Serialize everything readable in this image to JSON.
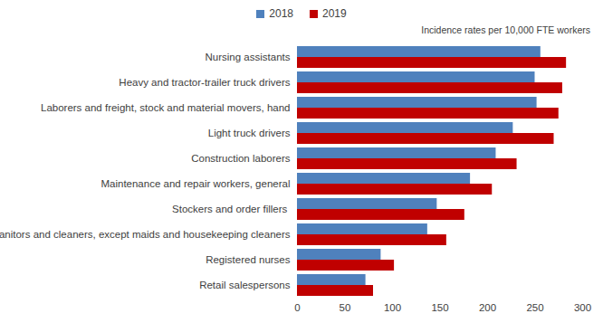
{
  "chart_data": {
    "type": "bar",
    "orientation": "horizontal",
    "subtitle": "Incidence rates per 10,000 FTE workers",
    "categories": [
      "Nursing assistants",
      "Heavy and tractor-trailer truck drivers",
      "Laborers and freight, stock and material movers, hand",
      "Light truck drivers",
      "Construction laborers",
      "Maintenance and repair workers, general",
      "Stockers and order fillers ",
      "Janitors and cleaners, except maids and housekeeping cleaners",
      "Registered nurses",
      "Retail salespersons"
    ],
    "series": [
      {
        "name": "2018",
        "color": "#4f81bd",
        "values": [
          256,
          250,
          252,
          227,
          209,
          182,
          147,
          137,
          88,
          72
        ]
      },
      {
        "name": "2019",
        "color": "#c00000",
        "values": [
          283,
          279,
          275,
          270,
          231,
          205,
          176,
          157,
          102,
          80
        ]
      }
    ],
    "xlim": [
      0,
      300
    ],
    "xticks": [
      0,
      50,
      100,
      150,
      200,
      250,
      300
    ],
    "grid": false,
    "legend": "top"
  }
}
